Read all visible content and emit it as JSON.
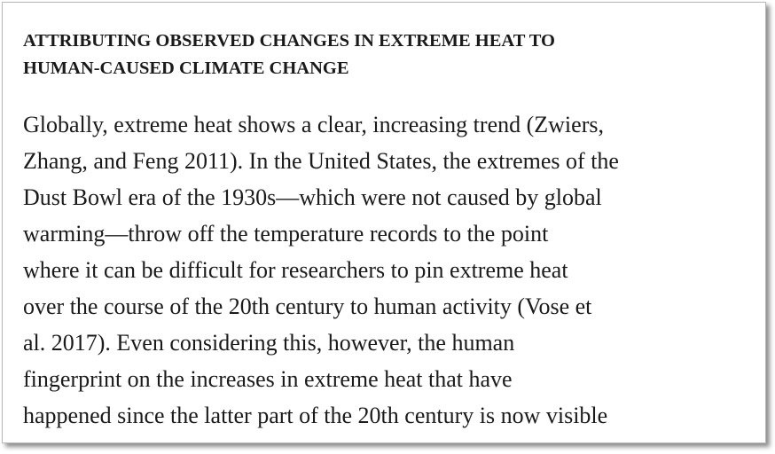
{
  "section": {
    "heading_lines": [
      "ATTRIBUTING OBSERVED CHANGES IN EXTREME HEAT TO",
      "HUMAN-CAUSED CLIMATE CHANGE"
    ],
    "paragraph_lines": [
      "Globally, extreme heat shows a clear, increasing trend (Zwiers,",
      "Zhang, and Feng 2011). In the United States, the extremes of the",
      "Dust Bowl era of the 1930s—which were not caused by global",
      "warming—throw off the temperature records to the point",
      "where it can be difficult for researchers to pin extreme heat",
      "over the course of the 20th century to human activity (Vose et",
      "al. 2017). Even considering this, however, the human",
      "fingerprint on the increases in extreme heat that have",
      "happened since the latter part of the 20th century is now visible"
    ]
  }
}
